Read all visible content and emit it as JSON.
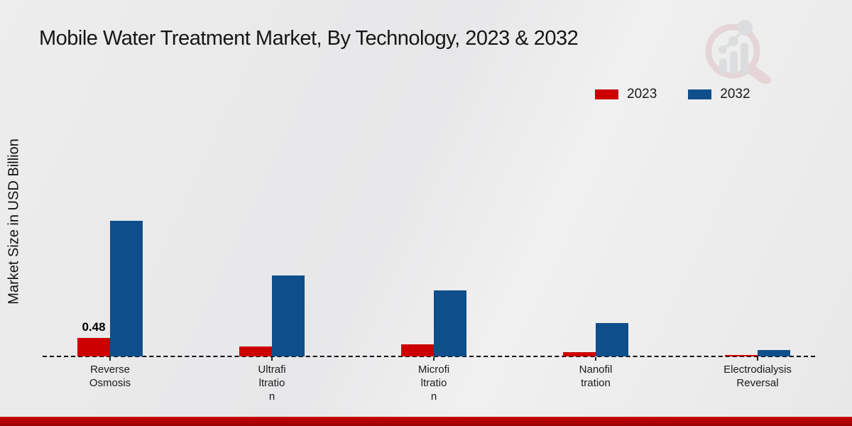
{
  "header": {
    "title": "Mobile Water Treatment Market, By Technology, 2023 & 2032"
  },
  "icons": {
    "watermark": "magnifier-bar-chart-logo"
  },
  "footer": {
    "strip_color": "#b70404"
  },
  "chart_data": {
    "type": "bar",
    "title": "Mobile Water Treatment Market, By Technology, 2023 & 2032",
    "xlabel": "",
    "ylabel": "Market Size in USD Billion",
    "categories": [
      "Reverse Osmosis",
      "Ultrafiltration",
      "Microfiltration",
      "Nanofiltration",
      "Electrodialysis Reversal"
    ],
    "category_display": [
      "Reverse\nOsmosis",
      "Ultrafi\nltratio\nn",
      "Microfi\nltratio\nn",
      "Nanofil\ntration",
      "Electrodialysis\nReversal"
    ],
    "series": [
      {
        "name": "2023",
        "color": "#cc0001",
        "values": [
          0.48,
          0.27,
          0.31,
          0.12,
          0.03
        ],
        "value_labels": [
          "0.48",
          "",
          "",
          "",
          ""
        ]
      },
      {
        "name": "2032",
        "color": "#0e4f8b",
        "values": [
          3.56,
          2.12,
          1.73,
          0.88,
          0.17
        ],
        "value_labels": [
          "",
          "",
          "",
          "",
          ""
        ]
      }
    ],
    "ylim": [
      0,
      4
    ],
    "grid": false,
    "baseline_style": "dashed",
    "legend_position": "top-right",
    "annotations": [
      "Only the 2023 Reverse Osmosis bar carries a printed data label (0.48)"
    ]
  }
}
